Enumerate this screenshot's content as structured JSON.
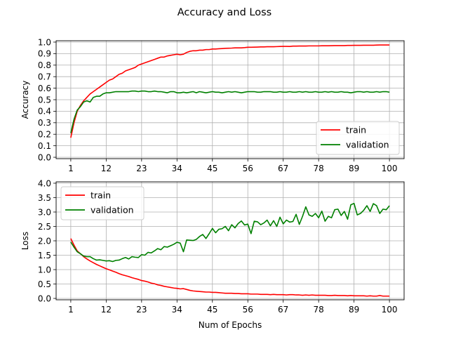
{
  "figure": {
    "title": "Accuracy and Loss",
    "xlabel": "Num of Epochs"
  },
  "chart_data": [
    {
      "type": "line",
      "ylabel": "Accuracy",
      "xlim": [
        1,
        100
      ],
      "ylim": [
        0,
        1.0
      ],
      "xticks": [
        1,
        12,
        23,
        34,
        45,
        56,
        67,
        78,
        89,
        100
      ],
      "yticks": [
        0.0,
        0.1,
        0.2,
        0.3,
        0.4,
        0.5,
        0.6,
        0.7,
        0.8,
        0.9,
        1.0
      ],
      "ytick_labels": [
        "0.0",
        "0.1",
        "0.2",
        "0.3",
        "0.4",
        "0.5",
        "0.6",
        "0.7",
        "0.8",
        "0.9",
        "1.0"
      ],
      "grid": true,
      "legend": "lower-right",
      "x_start": 1,
      "series": [
        {
          "name": "train",
          "color": "#ff0000",
          "values": [
            0.17,
            0.3,
            0.4,
            0.45,
            0.49,
            0.52,
            0.55,
            0.57,
            0.59,
            0.61,
            0.63,
            0.65,
            0.67,
            0.68,
            0.7,
            0.72,
            0.73,
            0.75,
            0.76,
            0.77,
            0.78,
            0.8,
            0.81,
            0.82,
            0.83,
            0.84,
            0.85,
            0.86,
            0.87,
            0.87,
            0.88,
            0.885,
            0.89,
            0.895,
            0.89,
            0.895,
            0.91,
            0.92,
            0.925,
            0.925,
            0.93,
            0.93,
            0.935,
            0.935,
            0.94,
            0.94,
            0.942,
            0.944,
            0.946,
            0.947,
            0.948,
            0.95,
            0.95,
            0.95,
            0.952,
            0.955,
            0.955,
            0.956,
            0.957,
            0.958,
            0.958,
            0.96,
            0.96,
            0.96,
            0.961,
            0.962,
            0.963,
            0.963,
            0.962,
            0.965,
            0.965,
            0.966,
            0.966,
            0.966,
            0.967,
            0.967,
            0.967,
            0.967,
            0.968,
            0.968,
            0.968,
            0.969,
            0.97,
            0.97,
            0.97,
            0.97,
            0.971,
            0.971,
            0.972,
            0.972,
            0.972,
            0.973,
            0.973,
            0.973,
            0.973,
            0.974,
            0.975,
            0.975,
            0.975,
            0.975
          ]
        },
        {
          "name": "validation",
          "color": "#008000",
          "values": [
            0.21,
            0.33,
            0.41,
            0.44,
            0.48,
            0.49,
            0.48,
            0.52,
            0.53,
            0.53,
            0.55,
            0.56,
            0.56,
            0.565,
            0.57,
            0.57,
            0.57,
            0.57,
            0.57,
            0.575,
            0.575,
            0.57,
            0.575,
            0.575,
            0.57,
            0.57,
            0.575,
            0.57,
            0.57,
            0.565,
            0.56,
            0.57,
            0.57,
            0.56,
            0.56,
            0.565,
            0.56,
            0.565,
            0.57,
            0.56,
            0.57,
            0.565,
            0.56,
            0.565,
            0.57,
            0.565,
            0.565,
            0.56,
            0.565,
            0.57,
            0.565,
            0.57,
            0.565,
            0.56,
            0.565,
            0.57,
            0.57,
            0.57,
            0.565,
            0.565,
            0.57,
            0.57,
            0.57,
            0.565,
            0.565,
            0.57,
            0.565,
            0.565,
            0.57,
            0.565,
            0.565,
            0.57,
            0.565,
            0.57,
            0.565,
            0.565,
            0.57,
            0.565,
            0.565,
            0.57,
            0.565,
            0.57,
            0.565,
            0.565,
            0.57,
            0.565,
            0.565,
            0.56,
            0.565,
            0.57,
            0.57,
            0.565,
            0.57,
            0.565,
            0.565,
            0.57,
            0.565,
            0.57,
            0.57,
            0.565
          ]
        }
      ]
    },
    {
      "type": "line",
      "ylabel": "Loss",
      "xlim": [
        1,
        100
      ],
      "ylim": [
        0,
        4.0
      ],
      "xticks": [
        1,
        12,
        23,
        34,
        45,
        56,
        67,
        78,
        89,
        100
      ],
      "yticks": [
        0.0,
        0.5,
        1.0,
        1.5,
        2.0,
        2.5,
        3.0,
        3.5,
        4.0
      ],
      "ytick_labels": [
        "0.0",
        "0.5",
        "1.0",
        "1.5",
        "2.0",
        "2.5",
        "3.0",
        "3.5",
        "4.0"
      ],
      "grid": true,
      "legend": "upper-left",
      "x_start": 1,
      "series": [
        {
          "name": "train",
          "color": "#ff0000",
          "values": [
            2.08,
            1.85,
            1.65,
            1.55,
            1.45,
            1.37,
            1.3,
            1.24,
            1.18,
            1.13,
            1.08,
            1.03,
            0.99,
            0.95,
            0.91,
            0.86,
            0.82,
            0.79,
            0.76,
            0.72,
            0.69,
            0.66,
            0.62,
            0.6,
            0.57,
            0.53,
            0.51,
            0.47,
            0.45,
            0.42,
            0.4,
            0.38,
            0.36,
            0.35,
            0.33,
            0.34,
            0.31,
            0.28,
            0.26,
            0.25,
            0.24,
            0.23,
            0.22,
            0.22,
            0.21,
            0.21,
            0.2,
            0.19,
            0.18,
            0.18,
            0.18,
            0.17,
            0.17,
            0.16,
            0.16,
            0.16,
            0.15,
            0.15,
            0.15,
            0.14,
            0.14,
            0.14,
            0.13,
            0.14,
            0.13,
            0.13,
            0.13,
            0.12,
            0.13,
            0.13,
            0.12,
            0.12,
            0.11,
            0.12,
            0.11,
            0.12,
            0.11,
            0.11,
            0.11,
            0.11,
            0.1,
            0.1,
            0.11,
            0.1,
            0.1,
            0.1,
            0.09,
            0.1,
            0.09,
            0.09,
            0.09,
            0.09,
            0.08,
            0.09,
            0.08,
            0.08,
            0.1,
            0.08,
            0.08,
            0.08
          ]
        },
        {
          "name": "validation",
          "color": "#008000",
          "values": [
            1.96,
            1.78,
            1.62,
            1.55,
            1.47,
            1.45,
            1.45,
            1.38,
            1.33,
            1.34,
            1.32,
            1.3,
            1.31,
            1.28,
            1.32,
            1.33,
            1.38,
            1.42,
            1.37,
            1.45,
            1.43,
            1.42,
            1.52,
            1.5,
            1.6,
            1.58,
            1.65,
            1.73,
            1.69,
            1.8,
            1.78,
            1.83,
            1.88,
            1.95,
            1.92,
            1.62,
            2.03,
            2.02,
            2.01,
            2.05,
            2.15,
            2.22,
            2.08,
            2.25,
            2.43,
            2.28,
            2.4,
            2.42,
            2.5,
            2.35,
            2.56,
            2.45,
            2.6,
            2.69,
            2.55,
            2.58,
            2.25,
            2.68,
            2.66,
            2.56,
            2.62,
            2.72,
            2.52,
            2.7,
            2.5,
            2.82,
            2.59,
            2.72,
            2.65,
            2.67,
            2.92,
            2.57,
            2.85,
            3.18,
            2.9,
            2.85,
            2.95,
            2.8,
            3.03,
            2.68,
            2.85,
            2.8,
            3.08,
            3.1,
            2.88,
            3.02,
            2.75,
            3.25,
            3.3,
            2.9,
            2.95,
            3.06,
            3.22,
            3.02,
            3.29,
            3.22,
            2.95,
            3.1,
            3.08,
            3.22
          ]
        }
      ]
    }
  ]
}
